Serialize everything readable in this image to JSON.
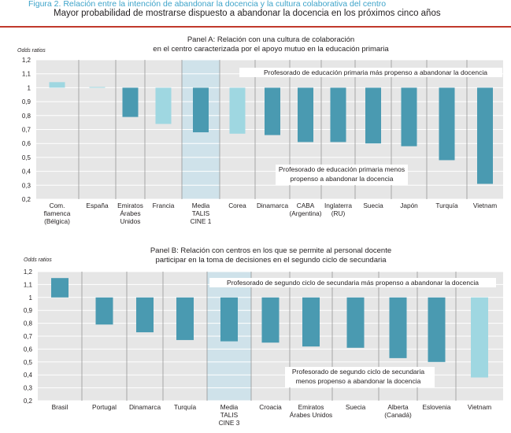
{
  "figure": {
    "title": "Figura 2. Relación entre la intención de abandonar la docencia y la cultura colaborativa del centro",
    "subtitle": "Mayor probabilidad de mostrarse dispuesto a abandonar la docencia en los próximos cinco años"
  },
  "colors": {
    "dark_bar": "#4a9ab1",
    "light_bar": "#9fd7e1",
    "plot_bg": "#e6e6e6",
    "highlight": "#cfe2ea",
    "accent_rule": "#c0392b",
    "title_color": "#3da3c9"
  },
  "chart_data": [
    {
      "type": "bar",
      "title": "Panel A: Relación con una cultura de colaboración\nen el centro caracterizada por el apoyo mutuo en la educación primaria",
      "ylabel": "Odds ratios",
      "ylim": [
        0.2,
        1.2
      ],
      "yticks": [
        "0,2",
        "0,3",
        "0,4",
        "0,5",
        "0,6",
        "0,7",
        "0,8",
        "0,9",
        "1",
        "1,1",
        "1,2"
      ],
      "baseline": 1,
      "categories": [
        "Com.\nflamenca\n(Bélgica)",
        "España",
        "Emiratos\nÁrabes\nUnidos",
        "Francia",
        "Media\nTALIS\nCINE 1",
        "Corea",
        "Dinamarca",
        "CABA\n(Argentina)",
        "Inglaterra\n(RU)",
        "Suecia",
        "Japón",
        "Turquía",
        "Vietnam"
      ],
      "values": [
        1.04,
        1.005,
        0.79,
        0.74,
        0.68,
        0.67,
        0.66,
        0.61,
        0.61,
        0.6,
        0.58,
        0.48,
        0.31
      ],
      "significant": [
        false,
        false,
        true,
        false,
        true,
        false,
        true,
        true,
        true,
        true,
        true,
        true,
        true
      ],
      "highlight_category": "Media\nTALIS\nCINE 1",
      "annotations": {
        "above": "Profesorado de educación primaria más propenso a abandonar la docencia",
        "below": "Profesorado de educación primaria menos\npropenso a abandonar la docencia"
      }
    },
    {
      "type": "bar",
      "title": "Panel B: Relación con centros en los que se permite al personal docente\nparticipar en la toma de decisiones en el segundo ciclo de secundaria",
      "ylabel": "Odds ratios",
      "ylim": [
        0.2,
        1.2
      ],
      "yticks": [
        "0,2",
        "0,3",
        "0,4",
        "0,5",
        "0,6",
        "0,7",
        "0,8",
        "0,9",
        "1",
        "1,1",
        "1,2"
      ],
      "baseline": 1,
      "categories": [
        "Brasil",
        "Portugal",
        "Dinamarca",
        "Turquía",
        "Media\nTALIS\nCINE 3",
        "Croacia",
        "Emiratos\nÁrabes Unidos",
        "Suecia",
        "Alberta\n(Canadá)",
        "Eslovenia",
        "Vietnam"
      ],
      "values": [
        1.15,
        0.79,
        0.73,
        0.67,
        0.66,
        0.65,
        0.62,
        0.61,
        0.53,
        0.5,
        0.38
      ],
      "significant": [
        true,
        true,
        true,
        true,
        true,
        true,
        true,
        true,
        true,
        true,
        false
      ],
      "highlight_category": "Media\nTALIS\nCINE 3",
      "annotations": {
        "above": "Profesorado de segundo ciclo de secundaria más propenso a abandonar la docencia",
        "below": "Profesorado de segundo ciclo de secundaria\nmenos propenso a abandonar la docencia"
      }
    }
  ]
}
